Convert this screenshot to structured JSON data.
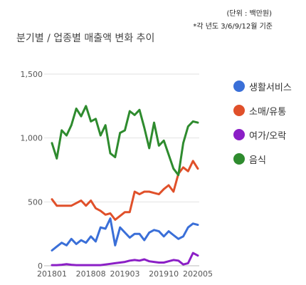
{
  "notes": {
    "unit": "(단위 : 백만원)",
    "basis": "*각 년도 3/6/9/12월 기준"
  },
  "chart_data": {
    "type": "line",
    "title": "분기별 / 업종별 매출액 변화 추이",
    "xlabel": "",
    "ylabel": "",
    "ylim": [
      0,
      1500
    ],
    "yticks": [
      "0",
      "500",
      "1,000",
      "1,500"
    ],
    "xtick_labels": [
      "201801",
      "201808",
      "201903",
      "201910",
      "202005"
    ],
    "grid": "horizontal",
    "legend_position": "right",
    "series": [
      {
        "name": "생활서비스",
        "color": "#3a6fd8",
        "values": [
          120,
          150,
          180,
          160,
          210,
          170,
          200,
          180,
          230,
          190,
          300,
          290,
          370,
          160,
          300,
          260,
          220,
          250,
          250,
          200,
          260,
          280,
          270,
          230,
          270,
          240,
          210,
          230,
          300,
          330,
          320
        ]
      },
      {
        "name": "소매/유통",
        "color": "#e0502a",
        "values": [
          520,
          470,
          470,
          470,
          470,
          490,
          510,
          470,
          510,
          450,
          430,
          400,
          410,
          360,
          390,
          420,
          420,
          580,
          560,
          580,
          580,
          570,
          560,
          600,
          630,
          580,
          720,
          770,
          740,
          820,
          760
        ]
      },
      {
        "name": "여가/오락",
        "color": "#8b1fc6",
        "values": [
          5,
          5,
          8,
          12,
          8,
          5,
          5,
          5,
          5,
          5,
          5,
          10,
          15,
          20,
          25,
          30,
          40,
          45,
          40,
          50,
          35,
          30,
          25,
          25,
          35,
          45,
          40,
          10,
          20,
          100,
          80
        ]
      },
      {
        "name": "음식",
        "color": "#2e8b2e",
        "values": [
          960,
          840,
          1060,
          1020,
          1100,
          1230,
          1170,
          1250,
          1130,
          1150,
          1020,
          1100,
          880,
          850,
          1040,
          1060,
          1210,
          1180,
          1220,
          1080,
          920,
          1120,
          940,
          980,
          870,
          760,
          710,
          960,
          1090,
          1130,
          1120
        ]
      }
    ]
  }
}
